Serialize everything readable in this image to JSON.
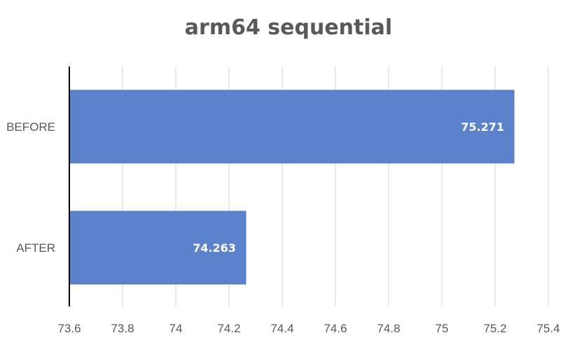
{
  "chart_data": {
    "type": "bar",
    "orientation": "horizontal",
    "title": "arm64 sequential",
    "xlabel": "",
    "ylabel": "",
    "categories": [
      "BEFORE",
      "AFTER"
    ],
    "values": [
      75.271,
      74.263
    ],
    "data_labels": [
      "75.271",
      "74.263"
    ],
    "xlim": [
      73.6,
      75.4
    ],
    "x_ticks": [
      "73.6",
      "73.8",
      "74",
      "74.2",
      "74.4",
      "74.6",
      "74.8",
      "75",
      "75.2",
      "75.4"
    ],
    "grid": true,
    "legend": "none",
    "colors": {
      "bar": "#5b82cb",
      "bar_border": "#4a6fb8",
      "grid": "#d0d0d0",
      "axis": "#000000",
      "text": "#595959",
      "data_label": "#ffffff"
    }
  }
}
